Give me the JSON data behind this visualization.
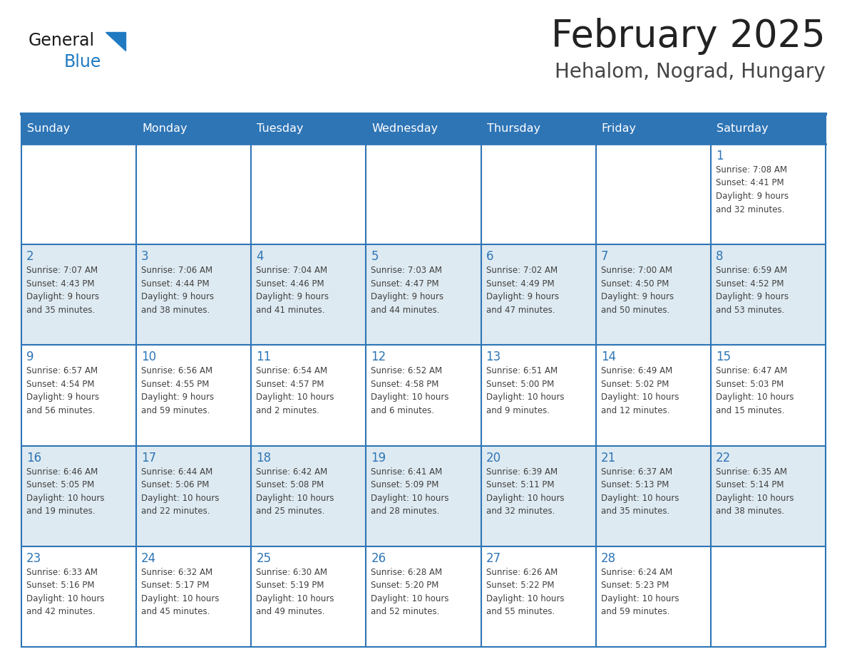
{
  "title": "February 2025",
  "subtitle": "Hehalom, Nograd, Hungary",
  "days_of_week": [
    "Sunday",
    "Monday",
    "Tuesday",
    "Wednesday",
    "Thursday",
    "Friday",
    "Saturday"
  ],
  "header_bg": "#2E75B6",
  "header_text": "#FFFFFF",
  "cell_bg_even": "#DEEAF1",
  "cell_bg_odd": "#FFFFFF",
  "cell_text": "#404040",
  "day_num_color": "#2E75B6",
  "title_color": "#222222",
  "subtitle_color": "#444444",
  "logo_general_color": "#1a1a1a",
  "logo_blue_color": "#1F7AC2",
  "weeks": [
    [
      {
        "day": null,
        "info": null
      },
      {
        "day": null,
        "info": null
      },
      {
        "day": null,
        "info": null
      },
      {
        "day": null,
        "info": null
      },
      {
        "day": null,
        "info": null
      },
      {
        "day": null,
        "info": null
      },
      {
        "day": 1,
        "info": "Sunrise: 7:08 AM\nSunset: 4:41 PM\nDaylight: 9 hours\nand 32 minutes."
      }
    ],
    [
      {
        "day": 2,
        "info": "Sunrise: 7:07 AM\nSunset: 4:43 PM\nDaylight: 9 hours\nand 35 minutes."
      },
      {
        "day": 3,
        "info": "Sunrise: 7:06 AM\nSunset: 4:44 PM\nDaylight: 9 hours\nand 38 minutes."
      },
      {
        "day": 4,
        "info": "Sunrise: 7:04 AM\nSunset: 4:46 PM\nDaylight: 9 hours\nand 41 minutes."
      },
      {
        "day": 5,
        "info": "Sunrise: 7:03 AM\nSunset: 4:47 PM\nDaylight: 9 hours\nand 44 minutes."
      },
      {
        "day": 6,
        "info": "Sunrise: 7:02 AM\nSunset: 4:49 PM\nDaylight: 9 hours\nand 47 minutes."
      },
      {
        "day": 7,
        "info": "Sunrise: 7:00 AM\nSunset: 4:50 PM\nDaylight: 9 hours\nand 50 minutes."
      },
      {
        "day": 8,
        "info": "Sunrise: 6:59 AM\nSunset: 4:52 PM\nDaylight: 9 hours\nand 53 minutes."
      }
    ],
    [
      {
        "day": 9,
        "info": "Sunrise: 6:57 AM\nSunset: 4:54 PM\nDaylight: 9 hours\nand 56 minutes."
      },
      {
        "day": 10,
        "info": "Sunrise: 6:56 AM\nSunset: 4:55 PM\nDaylight: 9 hours\nand 59 minutes."
      },
      {
        "day": 11,
        "info": "Sunrise: 6:54 AM\nSunset: 4:57 PM\nDaylight: 10 hours\nand 2 minutes."
      },
      {
        "day": 12,
        "info": "Sunrise: 6:52 AM\nSunset: 4:58 PM\nDaylight: 10 hours\nand 6 minutes."
      },
      {
        "day": 13,
        "info": "Sunrise: 6:51 AM\nSunset: 5:00 PM\nDaylight: 10 hours\nand 9 minutes."
      },
      {
        "day": 14,
        "info": "Sunrise: 6:49 AM\nSunset: 5:02 PM\nDaylight: 10 hours\nand 12 minutes."
      },
      {
        "day": 15,
        "info": "Sunrise: 6:47 AM\nSunset: 5:03 PM\nDaylight: 10 hours\nand 15 minutes."
      }
    ],
    [
      {
        "day": 16,
        "info": "Sunrise: 6:46 AM\nSunset: 5:05 PM\nDaylight: 10 hours\nand 19 minutes."
      },
      {
        "day": 17,
        "info": "Sunrise: 6:44 AM\nSunset: 5:06 PM\nDaylight: 10 hours\nand 22 minutes."
      },
      {
        "day": 18,
        "info": "Sunrise: 6:42 AM\nSunset: 5:08 PM\nDaylight: 10 hours\nand 25 minutes."
      },
      {
        "day": 19,
        "info": "Sunrise: 6:41 AM\nSunset: 5:09 PM\nDaylight: 10 hours\nand 28 minutes."
      },
      {
        "day": 20,
        "info": "Sunrise: 6:39 AM\nSunset: 5:11 PM\nDaylight: 10 hours\nand 32 minutes."
      },
      {
        "day": 21,
        "info": "Sunrise: 6:37 AM\nSunset: 5:13 PM\nDaylight: 10 hours\nand 35 minutes."
      },
      {
        "day": 22,
        "info": "Sunrise: 6:35 AM\nSunset: 5:14 PM\nDaylight: 10 hours\nand 38 minutes."
      }
    ],
    [
      {
        "day": 23,
        "info": "Sunrise: 6:33 AM\nSunset: 5:16 PM\nDaylight: 10 hours\nand 42 minutes."
      },
      {
        "day": 24,
        "info": "Sunrise: 6:32 AM\nSunset: 5:17 PM\nDaylight: 10 hours\nand 45 minutes."
      },
      {
        "day": 25,
        "info": "Sunrise: 6:30 AM\nSunset: 5:19 PM\nDaylight: 10 hours\nand 49 minutes."
      },
      {
        "day": 26,
        "info": "Sunrise: 6:28 AM\nSunset: 5:20 PM\nDaylight: 10 hours\nand 52 minutes."
      },
      {
        "day": 27,
        "info": "Sunrise: 6:26 AM\nSunset: 5:22 PM\nDaylight: 10 hours\nand 55 minutes."
      },
      {
        "day": 28,
        "info": "Sunrise: 6:24 AM\nSunset: 5:23 PM\nDaylight: 10 hours\nand 59 minutes."
      },
      {
        "day": null,
        "info": null
      }
    ]
  ]
}
